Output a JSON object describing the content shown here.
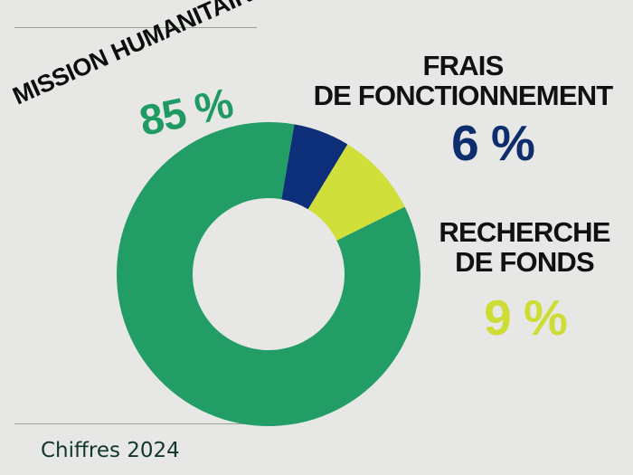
{
  "chart_data": {
    "type": "pie",
    "series": [
      {
        "name": "MISSION HUMANITAIRE",
        "value": 85,
        "color": "#239d66"
      },
      {
        "name": "FRAIS DE FONCTIONNEMENT",
        "value": 6,
        "color": "#0d2e78"
      },
      {
        "name": "RECHERCHE DE FONDS",
        "value": 9,
        "color": "#d0df3a"
      }
    ]
  },
  "labels": {
    "mission_label": "MISSION HUMANITAIRE",
    "mission_value": "85 %",
    "frais_label_line1": "FRAIS",
    "frais_label_line2": "DE FONCTIONNEMENT",
    "frais_value": "6 %",
    "recherche_label_line1": "RECHERCHE",
    "recherche_label_line2": "DE FONDS",
    "recherche_value": "9 %"
  },
  "footer": {
    "text": "Chiffres 2024"
  }
}
